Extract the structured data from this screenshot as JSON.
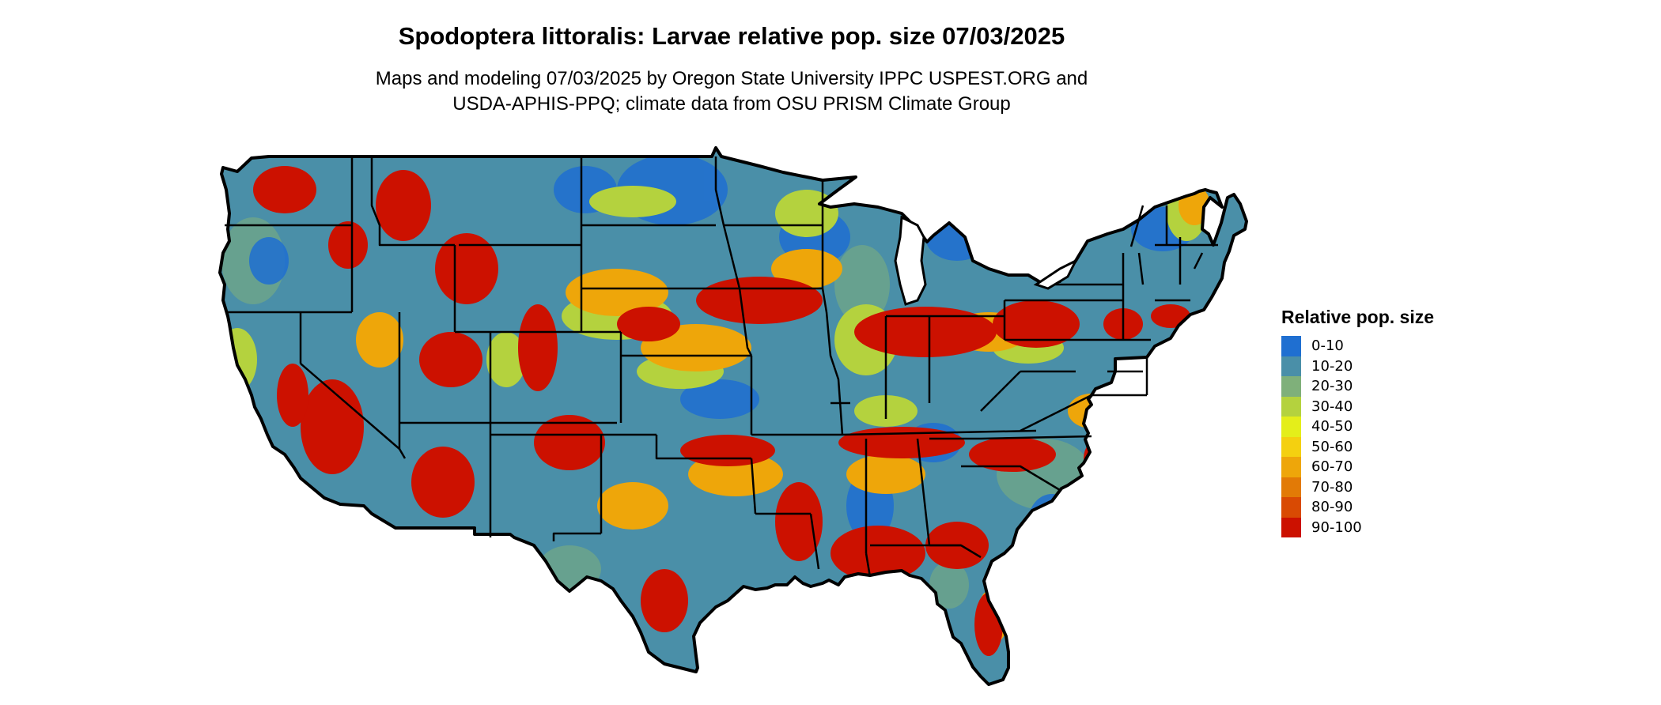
{
  "map": {
    "title": "Spodoptera littoralis: Larvae relative pop. size 07/03/2025",
    "subtitle_line1": "Maps and modeling 07/03/2025 by Oregon State University IPPC USPEST.ORG and",
    "subtitle_line2": "USDA-APHIS-PPQ; climate data from OSU PRISM Climate Group"
  },
  "legend": {
    "title": "Relative pop. size",
    "items": [
      {
        "label": "0-10",
        "color": "#1f6fd1"
      },
      {
        "label": "10-20",
        "color": "#4a8fa8"
      },
      {
        "label": "20-30",
        "color": "#7fb07a"
      },
      {
        "label": "30-40",
        "color": "#b4d23e"
      },
      {
        "label": "40-50",
        "color": "#e4ee1a"
      },
      {
        "label": "50-60",
        "color": "#f4d010"
      },
      {
        "label": "60-70",
        "color": "#eea60a"
      },
      {
        "label": "70-80",
        "color": "#e27a06"
      },
      {
        "label": "80-90",
        "color": "#d94a03"
      },
      {
        "label": "90-100",
        "color": "#cc1100"
      }
    ]
  }
}
